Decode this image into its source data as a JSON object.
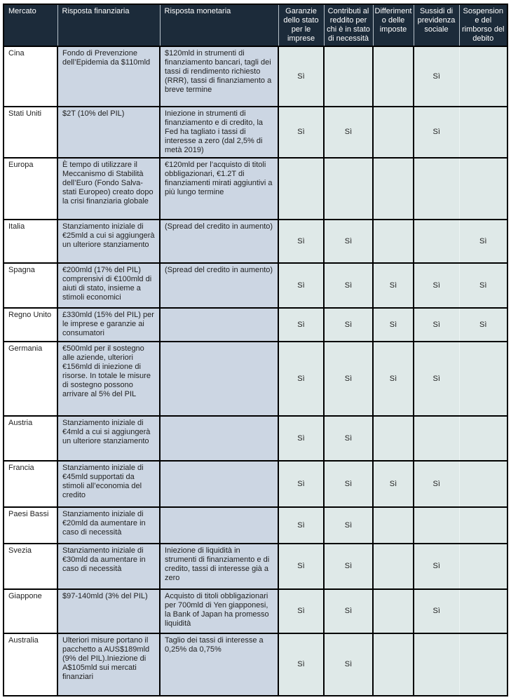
{
  "colors": {
    "header_bg": "#1c2b3a",
    "header_text": "#ffffff",
    "response_cell_bg": "#ccd6e3",
    "flag_cell_bg": "#dfe9e8",
    "market_cell_bg": "#ffffff",
    "border": "#000000"
  },
  "table": {
    "yes_label": "Sì",
    "columns": [
      {
        "id": "mercato",
        "label": "Mercato"
      },
      {
        "id": "risposta_finanziaria",
        "label": "Risposta finanziaria"
      },
      {
        "id": "risposta_monetaria",
        "label": "Risposta monetaria"
      },
      {
        "id": "garanzie",
        "label": "Garanzie dello stato per le imprese"
      },
      {
        "id": "contributi",
        "label": "Contributi al reddito per chi è in stato di necessità"
      },
      {
        "id": "differimento",
        "label": "Differimento delle imposte"
      },
      {
        "id": "sussidi",
        "label": "Sussidi di previdenza sociale"
      },
      {
        "id": "sospensione",
        "label": "Sospensione del rimborso del debito"
      }
    ],
    "rows": [
      {
        "mercato": "Cina",
        "risposta_finanziaria": "Fondo di Prevenzione dell’Epidemia da $110mld",
        "risposta_monetaria": "$120mld in strumenti di finanziamento bancari, tagli dei tassi di rendimento richiesto (RRR), tassi di finanziamento a breve termine",
        "garanzie": "Sì",
        "contributi": "",
        "differimento": "",
        "sussidi": "Sì",
        "sospensione": ""
      },
      {
        "mercato": "Stati Uniti",
        "risposta_finanziaria": "$2T (10% del PIL)",
        "risposta_monetaria": "Iniezione in strumenti di finanziamento e di credito, la Fed ha tagliato i tassi di interesse a zero (dal 2,5% di metà 2019)",
        "garanzie": "Sì",
        "contributi": "Sì",
        "differimento": "",
        "sussidi": "Sì",
        "sospensione": ""
      },
      {
        "mercato": "Europa",
        "risposta_finanziaria": "È tempo di utilizzare il Meccanismo di Stabilità dell’Euro (Fondo Salva-stati Europeo) creato dopo la crisi finanziaria globale",
        "risposta_monetaria": "€120mld per l’acquisto di titoli obbligazionari, €1.2T di finanziamenti mirati aggiuntivi a più lungo termine",
        "garanzie": "",
        "contributi": "",
        "differimento": "",
        "sussidi": "",
        "sospensione": ""
      },
      {
        "mercato": "Italia",
        "risposta_finanziaria": "Stanziamento iniziale di €25mld a cui si aggiungerà un ulteriore stanziamento",
        "risposta_monetaria": "(Spread del credito in aumento)",
        "garanzie": "Sì",
        "contributi": "Sì",
        "differimento": "",
        "sussidi": "",
        "sospensione": "Sì"
      },
      {
        "mercato": "Spagna",
        "risposta_finanziaria": "€200mld (17% del PIL) comprensivi di €100mld di aiuti di stato, insieme a stimoli economici",
        "risposta_monetaria": "(Spread del credito in aumento)",
        "garanzie": "Sì",
        "contributi": "Sì",
        "differimento": "Sì",
        "sussidi": "Sì",
        "sospensione": "Sì"
      },
      {
        "mercato": "Regno Unito",
        "risposta_finanziaria": "£330mld (15% del PIL) per le imprese e garanzie ai consumatori",
        "risposta_monetaria": "",
        "garanzie": "Sì",
        "contributi": "Sì",
        "differimento": "Sì",
        "sussidi": "Sì",
        "sospensione": "Sì"
      },
      {
        "mercato": "Germania",
        "risposta_finanziaria": "€500mld per il sostegno alle aziende, ulteriori €156mld di iniezione di risorse. In totale le misure di sostegno possono arrivare al 5% del PIL",
        "risposta_monetaria": "",
        "garanzie": "Sì",
        "contributi": "Sì",
        "differimento": "Sì",
        "sussidi": "Sì",
        "sospensione": ""
      },
      {
        "mercato": "Austria",
        "risposta_finanziaria": "Stanziamento iniziale di €4mld a cui si aggiungerà un ulteriore stanziamento",
        "risposta_monetaria": "",
        "garanzie": "Sì",
        "contributi": "Sì",
        "differimento": "",
        "sussidi": "",
        "sospensione": ""
      },
      {
        "mercato": "Francia",
        "risposta_finanziaria": "Stanziamento iniziale di €45mld supportati da stimoli all’economia del credito",
        "risposta_monetaria": "",
        "garanzie": "Sì",
        "contributi": "Sì",
        "differimento": "Sì",
        "sussidi": "Sì",
        "sospensione": ""
      },
      {
        "mercato": "Paesi Bassi",
        "risposta_finanziaria": "Stanziamento iniziale di €20mld da aumentare in caso di necessità",
        "risposta_monetaria": "",
        "garanzie": "Sì",
        "contributi": "Sì",
        "differimento": "",
        "sussidi": "",
        "sospensione": ""
      },
      {
        "mercato": "Svezia",
        "risposta_finanziaria": "Stanziamento iniziale di €30mld da aumentare in caso di necessità",
        "risposta_monetaria": "Iniezione di liquidità in strumenti di finanziamento e di credito, tassi di interesse già a zero",
        "garanzie": "Sì",
        "contributi": "Sì",
        "differimento": "",
        "sussidi": "Sì",
        "sospensione": ""
      },
      {
        "mercato": "Giappone",
        "risposta_finanziaria": "$97-140mld (3% del PIL)",
        "risposta_monetaria": "Acquisto di titoli obbligazionari per 700mld di Yen giapponesi, la Bank of Japan ha promesso liquidità",
        "garanzie": "Sì",
        "contributi": "Sì",
        "differimento": "",
        "sussidi": "Sì",
        "sospensione": ""
      },
      {
        "mercato": "Australia",
        "risposta_finanziaria": "Ulteriori misure portano il pacchetto a AUS$189mld (9% del PIL).Iniezione di A$105mld sui mercati finanziari",
        "risposta_monetaria": "Taglio dei tassi di interesse a 0,25% da 0,75%",
        "garanzie": "Sì",
        "contributi": "Sì",
        "differimento": "",
        "sussidi": "",
        "sospensione": ""
      }
    ]
  }
}
